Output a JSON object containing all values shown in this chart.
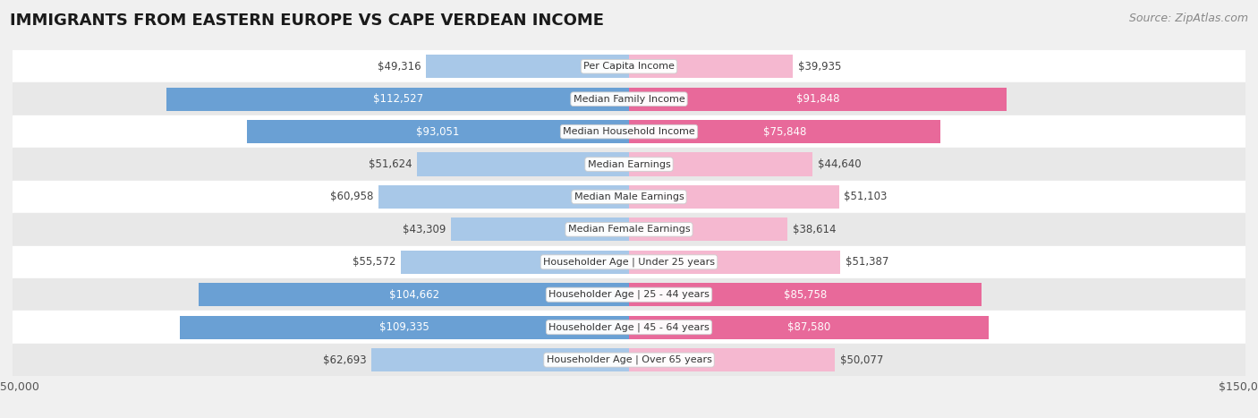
{
  "title": "IMMIGRANTS FROM EASTERN EUROPE VS CAPE VERDEAN INCOME",
  "source": "Source: ZipAtlas.com",
  "categories": [
    "Per Capita Income",
    "Median Family Income",
    "Median Household Income",
    "Median Earnings",
    "Median Male Earnings",
    "Median Female Earnings",
    "Householder Age | Under 25 years",
    "Householder Age | 25 - 44 years",
    "Householder Age | 45 - 64 years",
    "Householder Age | Over 65 years"
  ],
  "eastern_europe": [
    49316,
    112527,
    93051,
    51624,
    60958,
    43309,
    55572,
    104662,
    109335,
    62693
  ],
  "cape_verdean": [
    39935,
    91848,
    75848,
    44640,
    51103,
    38614,
    51387,
    85758,
    87580,
    50077
  ],
  "eastern_europe_labels": [
    "$49,316",
    "$112,527",
    "$93,051",
    "$51,624",
    "$60,958",
    "$43,309",
    "$55,572",
    "$104,662",
    "$109,335",
    "$62,693"
  ],
  "cape_verdean_labels": [
    "$39,935",
    "$91,848",
    "$75,848",
    "$44,640",
    "$51,103",
    "$38,614",
    "$51,387",
    "$85,758",
    "$87,580",
    "$50,077"
  ],
  "eastern_europe_color_light": "#a8c8e8",
  "eastern_europe_color_dark": "#6aa0d4",
  "cape_verdean_color_light": "#f5b8d0",
  "cape_verdean_color_dark": "#e8699a",
  "max_value": 150000,
  "bg_color": "#f0f0f0",
  "row_bg_colors": [
    "#ffffff",
    "#e8e8e8"
  ],
  "label_white": "#ffffff",
  "label_dark": "#444444",
  "title_fontsize": 13,
  "source_fontsize": 9,
  "bar_label_fontsize": 8.5,
  "category_fontsize": 8,
  "legend_fontsize": 9,
  "axis_label_fontsize": 9,
  "ee_dark_threshold": 75000,
  "cv_dark_threshold": 65000
}
